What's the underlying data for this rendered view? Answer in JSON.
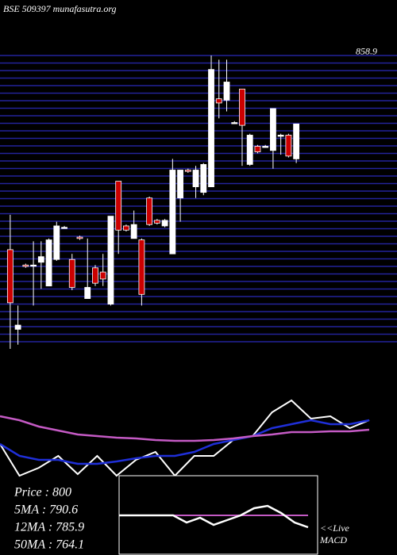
{
  "chart_data": [
    {
      "type": "candlestick",
      "title": "BSE 509397 munafasutra.org",
      "categories": [
        null,
        null,
        null,
        null,
        null,
        null,
        null,
        null,
        null,
        null,
        null,
        null,
        null,
        null,
        null,
        null,
        null,
        null,
        null,
        null,
        null,
        null,
        null,
        null,
        null,
        null,
        null,
        null,
        null,
        null,
        null,
        null,
        null,
        null,
        null,
        null,
        null,
        null
      ],
      "open": [
        721,
        664,
        710,
        710,
        712,
        695,
        714,
        737,
        714,
        730,
        686,
        708,
        705,
        682,
        770,
        738,
        729,
        728,
        758,
        742,
        738,
        718,
        758,
        778,
        766,
        762,
        766,
        829,
        828,
        812,
        836,
        782,
        795,
        795,
        792,
        803,
        803,
        786
      ],
      "high": [
        746,
        681,
        711,
        727,
        727,
        729,
        741,
        738,
        718,
        731,
        729,
        710,
        718,
        745,
        770,
        739,
        749,
        729,
        759,
        743,
        743,
        786,
        778,
        779,
        781,
        783,
        860,
        857,
        857,
        813,
        836,
        804,
        796,
        796,
        822,
        804,
        804,
        811
      ],
      "low": [
        650,
        653,
        708,
        681,
        693,
        695,
        713,
        736,
        692,
        728,
        686,
        695,
        695,
        681,
        718,
        734,
        729,
        681,
        738,
        739,
        737,
        718,
        741,
        776,
        758,
        760,
        766,
        815,
        820,
        811,
        781,
        781,
        790,
        794,
        779,
        789,
        787,
        783
      ],
      "close": [
        683,
        667,
        709,
        710,
        716,
        728,
        738,
        737,
        694,
        729,
        694,
        697,
        700,
        745,
        735,
        735,
        739,
        689,
        739,
        740,
        742,
        778,
        778,
        777,
        778,
        782,
        850,
        826,
        841,
        812,
        810,
        803,
        791,
        795,
        822,
        803,
        788,
        811
      ],
      "up_color": "#ffffff",
      "down_color": "#cc0000",
      "ylim": [
        650,
        860
      ],
      "yticks": [
        858.9
      ],
      "grid": true,
      "grid_color": "#23239a"
    },
    {
      "type": "line",
      "series": [
        {
          "name": null,
          "color": "#ffffff",
          "values": [
            40,
            0,
            10,
            25,
            2,
            25,
            0,
            20,
            30,
            0,
            25,
            25,
            45,
            50,
            80,
            95,
            72,
            75,
            60,
            70
          ]
        },
        {
          "name": null,
          "color": "#1f2fd8",
          "values": [
            40,
            25,
            20,
            20,
            15,
            15,
            18,
            22,
            25,
            25,
            30,
            40,
            45,
            50,
            60,
            65,
            70,
            65,
            65,
            70
          ]
        },
        {
          "name": null,
          "color": "#c45ac4",
          "values": [
            75,
            70,
            62,
            57,
            52,
            50,
            48,
            47,
            45,
            44,
            44,
            45,
            47,
            50,
            52,
            55,
            55,
            56,
            56,
            58
          ]
        }
      ],
      "ylim": [
        0,
        110
      ],
      "info": [
        "Price : 800",
        "5MA : 790.6",
        "12MA : 785.9",
        "50MA : 764.1"
      ]
    },
    {
      "type": "macd",
      "series": [
        {
          "name": null,
          "color": "#c45ac4",
          "values": [
            0,
            0,
            0,
            0,
            0,
            0,
            0,
            0,
            0,
            0,
            0,
            0,
            0,
            0,
            0
          ]
        },
        {
          "name": null,
          "color": "#ffffff",
          "values": [
            0,
            0,
            0,
            0,
            0,
            -3,
            -1,
            -4,
            -2,
            0,
            3,
            4,
            1,
            -3,
            -5
          ]
        }
      ],
      "ylim": [
        -10,
        10
      ],
      "label": "<<Live",
      "label2": "MACD"
    }
  ]
}
